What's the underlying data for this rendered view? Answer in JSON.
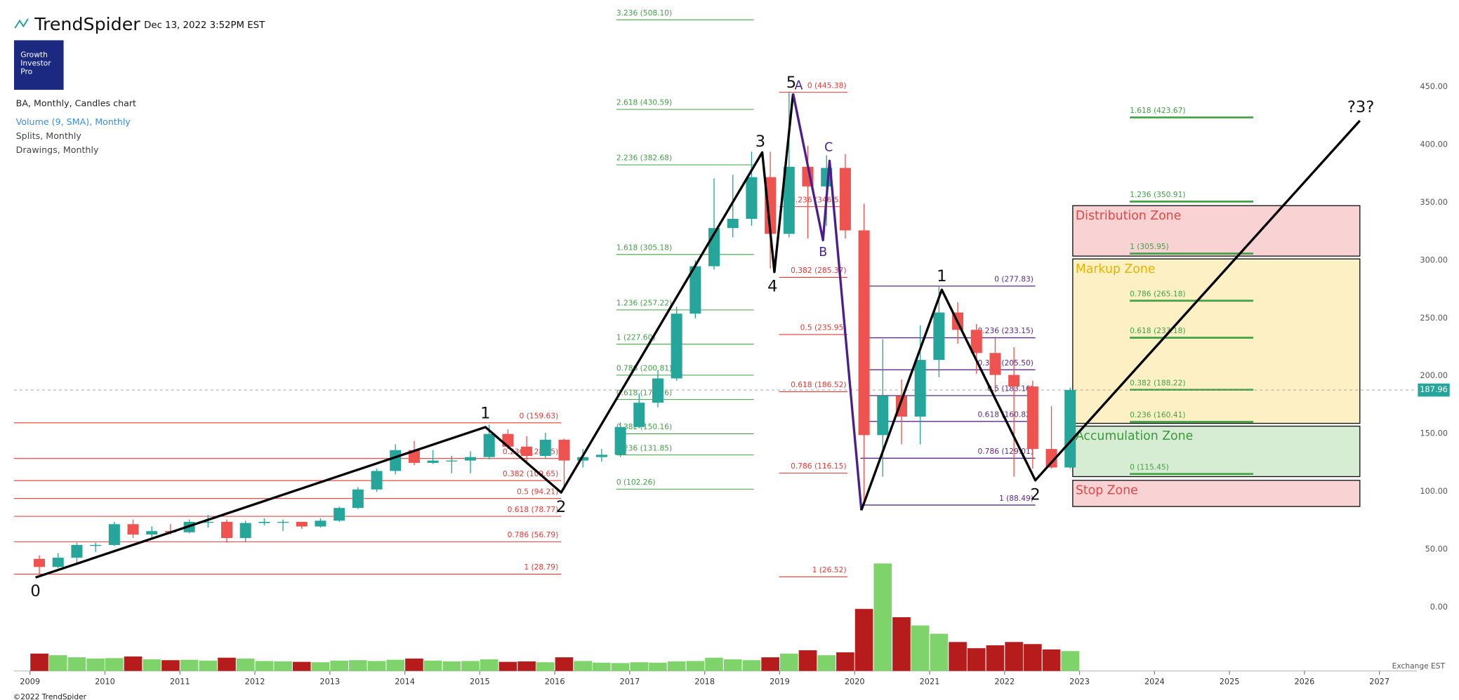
{
  "header": {
    "brand": "TrendSpider",
    "timestamp": "Dec 13, 2022 3:52PM EST",
    "logo": [
      "Growth",
      "Investor",
      "Pro"
    ]
  },
  "legend": [
    "BA, Monthly, Candles chart",
    "Volume (9, SMA), Monthly",
    "Splits, Monthly",
    "Drawings, Monthly"
  ],
  "footer": {
    "copyright": "©2022 TrendSpider",
    "exchange": "Exchange EST"
  },
  "chart_data": {
    "type": "candlestick",
    "x": [
      2009,
      2009.25,
      2009.5,
      2009.75,
      2010,
      2010.25,
      2010.5,
      2010.75,
      2011,
      2011.25,
      2011.5,
      2011.75,
      2012,
      2012.25,
      2012.5,
      2012.75,
      2013,
      2013.25,
      2013.5,
      2013.75,
      2014,
      2014.25,
      2014.5,
      2014.75,
      2015,
      2015.25,
      2015.5,
      2015.75,
      2016,
      2016.25,
      2016.5,
      2016.75,
      2017,
      2017.25,
      2017.5,
      2017.75,
      2018,
      2018.25,
      2018.5,
      2018.75,
      2019,
      2019.25,
      2019.5,
      2019.75,
      2020,
      2020.25,
      2020.5,
      2020.75,
      2021,
      2021.25,
      2021.5,
      2021.75,
      2022,
      2022.25,
      2022.5,
      2022.75
    ],
    "open": [
      42,
      35,
      43,
      54,
      54,
      72,
      63,
      66,
      65,
      74,
      74,
      60,
      73,
      74,
      74,
      70,
      75,
      86,
      102,
      118,
      136,
      125,
      127,
      127,
      130,
      150,
      139,
      131,
      145,
      127,
      130,
      132,
      156,
      177,
      198,
      254,
      295,
      328,
      336,
      372,
      323,
      381,
      364,
      380,
      326,
      149,
      183,
      165,
      214,
      255,
      240,
      220,
      201,
      191,
      137,
      121
    ],
    "high": [
      45,
      47,
      56,
      56,
      74,
      76,
      70,
      72,
      76,
      80,
      76,
      75,
      77,
      76,
      74,
      77,
      87,
      104,
      120,
      141,
      144,
      136,
      131,
      135,
      158,
      154,
      148,
      151,
      146,
      137,
      137,
      160,
      185,
      205,
      260,
      300,
      371,
      374,
      394,
      394,
      446,
      399,
      391,
      392,
      349,
      232,
      197,
      244,
      278,
      264,
      245,
      234,
      225,
      196,
      174,
      190
    ],
    "low": [
      29,
      34,
      38,
      48,
      53,
      60,
      60,
      63,
      64,
      69,
      56,
      57,
      71,
      66,
      68,
      69,
      74,
      85,
      100,
      115,
      123,
      124,
      116,
      116,
      128,
      137,
      125,
      129,
      102,
      121,
      126,
      130,
      155,
      173,
      196,
      250,
      292,
      320,
      330,
      293,
      320,
      319,
      330,
      319,
      89,
      113,
      141,
      141,
      199,
      228,
      202,
      186,
      113,
      120,
      120,
      120
    ],
    "close": [
      35,
      43,
      54,
      54,
      72,
      63,
      66,
      65,
      74,
      74,
      60,
      73,
      74,
      74,
      70,
      75,
      86,
      102,
      118,
      136,
      125,
      127,
      127,
      130,
      150,
      139,
      131,
      145,
      127,
      130,
      132,
      156,
      177,
      198,
      254,
      295,
      328,
      336,
      372,
      323,
      381,
      364,
      380,
      326,
      149,
      183,
      165,
      214,
      255,
      240,
      220,
      201,
      191,
      137,
      121,
      188
    ],
    "volume": [
      420,
      380,
      330,
      300,
      310,
      350,
      280,
      260,
      270,
      250,
      320,
      300,
      240,
      230,
      220,
      210,
      250,
      260,
      240,
      270,
      300,
      250,
      230,
      240,
      280,
      220,
      230,
      210,
      330,
      240,
      200,
      190,
      210,
      200,
      230,
      240,
      320,
      280,
      260,
      330,
      420,
      500,
      380,
      450,
      1500,
      2600,
      1300,
      1100,
      900,
      700,
      550,
      620,
      700,
      650,
      520,
      480
    ],
    "xlim": [
      2008.6,
      2027.5
    ],
    "ylim": [
      -64.6,
      525.1
    ],
    "xticks": [
      2009,
      2010,
      2011,
      2012,
      2013,
      2014,
      2015,
      2016,
      2017,
      2018,
      2019,
      2020,
      2021,
      2022,
      2023,
      2024,
      2025,
      2026,
      2027
    ],
    "yticks": [
      {
        "value": 0,
        "label": "0.00"
      },
      {
        "value": 50,
        "label": "50.00"
      },
      {
        "value": 100,
        "label": "100.00"
      },
      {
        "value": 150,
        "label": "150.00"
      },
      {
        "value": 200,
        "label": "200.00"
      },
      {
        "value": 250,
        "label": "250.00"
      },
      {
        "value": 300,
        "label": "300.00"
      },
      {
        "value": 350,
        "label": "350.00"
      },
      {
        "value": 400,
        "label": "400.00"
      },
      {
        "value": 450,
        "label": "450.00"
      }
    ],
    "last_price": 187.96,
    "up_color": "#26a69a",
    "down_color": "#ef5350",
    "volume_up_color": "#7ed36b",
    "volume_down_color": "#b71c1c",
    "fib_sets": [
      {
        "color": "#e53935",
        "levels": [
          {
            "value": 159.63,
            "label": "0 (159.63)"
          },
          {
            "value": 128.75,
            "label": "0.236 (128.75)"
          },
          {
            "value": 109.65,
            "label": "0.382 (109.65)"
          },
          {
            "value": 94.21,
            "label": "0.5 (94.21)"
          },
          {
            "value": 78.77,
            "label": "0.618 (78.77)"
          },
          {
            "value": 56.79,
            "label": "0.786 (56.79)"
          },
          {
            "value": 28.79,
            "label": "1 (28.79)"
          }
        ]
      },
      {
        "color": "#43a047",
        "levels": [
          {
            "value": 102.26,
            "label": "0 (102.26)"
          },
          {
            "value": 131.85,
            "label": "0.236 (131.85)"
          },
          {
            "value": 150.16,
            "label": "0.382 (150.16)"
          },
          {
            "value": 179.76,
            "label": "0.618 (179.76)"
          },
          {
            "value": 200.81,
            "label": "0.786 (200.81)"
          },
          {
            "value": 227.6,
            "label": "1 (227.60)"
          },
          {
            "value": 257.22,
            "label": "1.236 (257.22)"
          },
          {
            "value": 305.18,
            "label": "1.618 (305.18)"
          },
          {
            "value": 382.68,
            "label": "2.236 (382.68)"
          },
          {
            "value": 430.59,
            "label": "2.618 (430.59)"
          },
          {
            "value": 508.1,
            "label": "3.236 (508.10)"
          }
        ]
      },
      {
        "color": "#e53935",
        "levels": [
          {
            "value": 445.38,
            "label": "0 (445.38)"
          },
          {
            "value": 346.53,
            "label": "0.236 (346.53)"
          },
          {
            "value": 285.37,
            "label": "0.382 (285.37)"
          },
          {
            "value": 235.95,
            "label": "0.5 (235.95)"
          },
          {
            "value": 186.52,
            "label": "0.618 (186.52)"
          },
          {
            "value": 116.15,
            "label": "0.786 (116.15)"
          },
          {
            "value": 26.52,
            "label": "1 (26.52)"
          }
        ]
      },
      {
        "color": "#5b2a8a",
        "levels": [
          {
            "value": 277.83,
            "label": "0 (277.83)"
          },
          {
            "value": 233.15,
            "label": "0.236 (233.15)"
          },
          {
            "value": 205.5,
            "label": "0.382 (205.50)"
          },
          {
            "value": 183.16,
            "label": "0.5 (183.16)"
          },
          {
            "value": 160.82,
            "label": "0.618 (160.82)"
          },
          {
            "value": 129.01,
            "label": "0.786 (129.01)"
          },
          {
            "value": 88.49,
            "label": "1 (88.49)"
          }
        ]
      },
      {
        "color": "#43a047",
        "levels": [
          {
            "value": 115.45,
            "label": "0 (115.45)"
          },
          {
            "value": 160.41,
            "label": "0.236 (160.41)"
          },
          {
            "value": 188.22,
            "label": "0.382 (188.22)"
          },
          {
            "value": 233.18,
            "label": "0.618 (233.18)"
          },
          {
            "value": 265.18,
            "label": "0.786 (265.18)"
          },
          {
            "value": 305.95,
            "label": "1 (305.95)"
          },
          {
            "value": 350.91,
            "label": "1.236 (350.91)"
          },
          {
            "value": 423.67,
            "label": "1.618 (423.67)"
          }
        ]
      }
    ],
    "zones": [
      {
        "label": "Distribution Zone",
        "fill": "#f9d3d3",
        "color": "#e04848"
      },
      {
        "label": "Markup Zone",
        "fill": "#fdf0c4",
        "color": "#e6b400"
      },
      {
        "label": "Accumulation Zone",
        "fill": "#d6ecd3",
        "color": "#3a9a3a"
      },
      {
        "label": "Stop Zone",
        "fill": "#f9d3d3",
        "color": "#e04848"
      }
    ],
    "wave_labels": {
      "main": [
        "0",
        "1",
        "2",
        "3",
        "4",
        "5"
      ],
      "corrective": [
        "A",
        "B",
        "C"
      ],
      "new": [
        "1",
        "2",
        "?3?"
      ]
    }
  }
}
